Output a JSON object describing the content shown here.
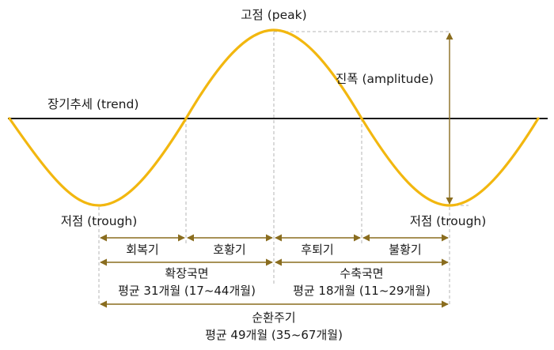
{
  "labels": {
    "peak": "고점 (peak)",
    "trend": "장기추세 (trend)",
    "amplitude": "진폭 (amplitude)",
    "trough_left": "저점 (trough)",
    "trough_right": "저점 (trough)"
  },
  "phases": [
    "회복기",
    "호황기",
    "후퇴기",
    "불황기"
  ],
  "expansion": {
    "title": "확장국면",
    "avg": "평균 31개월 (17~44개월)"
  },
  "contraction": {
    "title": "수축국면",
    "avg": "평균 18개월 (11~29개월)"
  },
  "cycle": {
    "title": "순환주기",
    "avg": "평균 49개월 (35~67개월)"
  },
  "colors": {
    "curve": "#f2b70f",
    "arrow": "#8a6d1f",
    "guide": "#b5b5b5",
    "trend": "#1a1a1a"
  }
}
